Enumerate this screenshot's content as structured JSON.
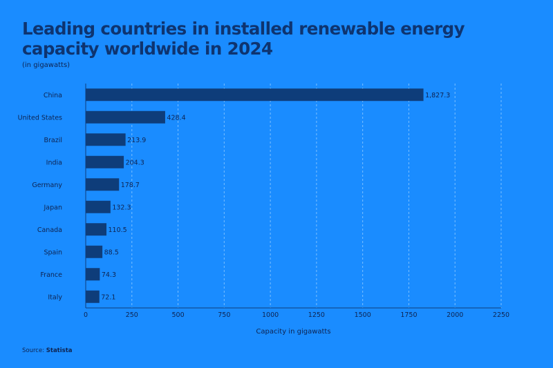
{
  "header": {
    "title": "Leading countries in installed renewable energy capacity worldwide in 2024",
    "subtitle": "(in gigawatts)"
  },
  "footer": {
    "source_prefix": "Source:",
    "source_name": "Statista"
  },
  "colors": {
    "background": "#1a8cff",
    "bar": "#0e3d7a",
    "title": "#0e3470",
    "text": "#0e2350",
    "grid": "#7cc0ff"
  },
  "chart_data": {
    "type": "bar",
    "orientation": "horizontal",
    "title": "Leading countries in installed renewable energy capacity worldwide in 2024",
    "subtitle": "(in gigawatts)",
    "xlabel": "Capacity in gigawatts",
    "ylabel": "",
    "categories": [
      "China",
      "United States",
      "Brazil",
      "India",
      "Germany",
      "Japan",
      "Canada",
      "Spain",
      "France",
      "Italy"
    ],
    "values": [
      1827.3,
      428.4,
      213.9,
      204.3,
      178.7,
      132.3,
      110.5,
      88.5,
      74.3,
      72.1
    ],
    "value_labels": [
      "1,827.3",
      "428.4",
      "213.9",
      "204.3",
      "178.7",
      "132.3",
      "110.5",
      "88.5",
      "74.3",
      "72.1"
    ],
    "xlim": [
      0,
      2250
    ],
    "xticks": [
      0,
      250,
      500,
      750,
      1000,
      1250,
      1500,
      1750,
      2000,
      2250
    ],
    "grid": "vertical dashed",
    "legend": "none"
  }
}
